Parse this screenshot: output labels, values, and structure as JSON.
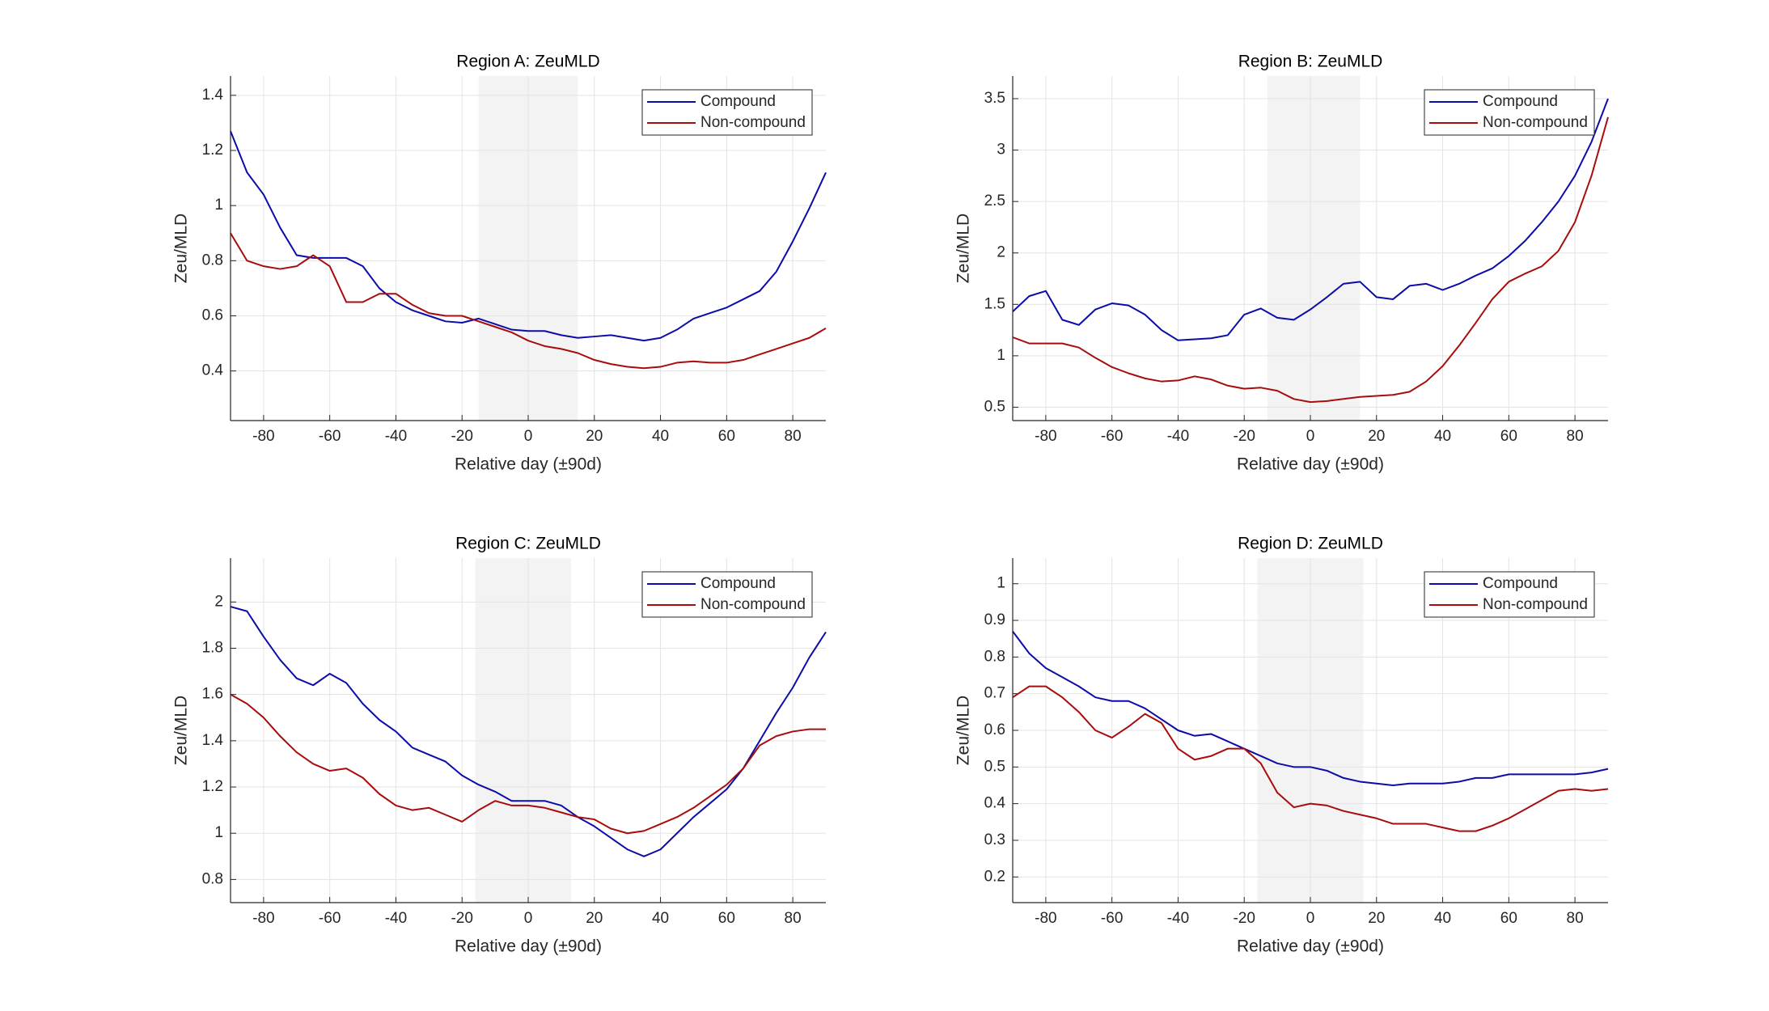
{
  "chart_data": [
    {
      "type": "line",
      "title": "Region A: ZeuMLD",
      "xlabel": "Relative day (±90d)",
      "ylabel": "Zeu/MLD",
      "x": [
        -90,
        -85,
        -80,
        -75,
        -70,
        -65,
        -60,
        -55,
        -50,
        -45,
        -40,
        -35,
        -30,
        -25,
        -20,
        -15,
        -10,
        -5,
        0,
        5,
        10,
        15,
        20,
        25,
        30,
        35,
        40,
        45,
        50,
        55,
        60,
        65,
        70,
        75,
        80,
        85,
        90
      ],
      "series": [
        {
          "name": "Compound",
          "color": "#0c0ca8",
          "values": [
            1.27,
            1.12,
            1.04,
            0.92,
            0.82,
            0.81,
            0.81,
            0.81,
            0.78,
            0.7,
            0.65,
            0.62,
            0.6,
            0.58,
            0.575,
            0.59,
            0.57,
            0.55,
            0.545,
            0.545,
            0.53,
            0.52,
            0.525,
            0.53,
            0.52,
            0.51,
            0.52,
            0.55,
            0.59,
            0.61,
            0.63,
            0.66,
            0.69,
            0.76,
            0.87,
            0.99,
            1.12
          ]
        },
        {
          "name": "Non-compound",
          "color": "#a80c0c",
          "values": [
            0.9,
            0.8,
            0.78,
            0.77,
            0.78,
            0.82,
            0.78,
            0.65,
            0.65,
            0.68,
            0.68,
            0.64,
            0.61,
            0.6,
            0.6,
            0.58,
            0.56,
            0.54,
            0.51,
            0.49,
            0.48,
            0.465,
            0.44,
            0.425,
            0.415,
            0.41,
            0.415,
            0.43,
            0.435,
            0.43,
            0.43,
            0.44,
            0.46,
            0.48,
            0.5,
            0.52,
            0.555
          ]
        }
      ],
      "xlim": [
        -90,
        90
      ],
      "xticks": [
        -80,
        -60,
        -40,
        -20,
        0,
        20,
        40,
        60,
        80
      ],
      "ylim": [
        0.22,
        1.47
      ],
      "yticks": [
        0.4,
        0.6,
        0.8,
        1,
        1.2,
        1.4
      ],
      "highlight_range": [
        -15,
        15
      ],
      "highlight_color": "#f3f3f3",
      "grid": true,
      "legend": "upper right"
    },
    {
      "type": "line",
      "title": "Region B: ZeuMLD",
      "xlabel": "Relative day (±90d)",
      "ylabel": "Zeu/MLD",
      "x": [
        -90,
        -85,
        -80,
        -75,
        -70,
        -65,
        -60,
        -55,
        -50,
        -45,
        -40,
        -35,
        -30,
        -25,
        -20,
        -15,
        -10,
        -5,
        0,
        5,
        10,
        15,
        20,
        25,
        30,
        35,
        40,
        45,
        50,
        55,
        60,
        65,
        70,
        75,
        80,
        85,
        90
      ],
      "series": [
        {
          "name": "Compound",
          "color": "#0c0ca8",
          "values": [
            1.43,
            1.58,
            1.63,
            1.35,
            1.3,
            1.45,
            1.51,
            1.49,
            1.4,
            1.25,
            1.15,
            1.16,
            1.17,
            1.2,
            1.4,
            1.46,
            1.37,
            1.35,
            1.45,
            1.57,
            1.7,
            1.72,
            1.57,
            1.55,
            1.68,
            1.7,
            1.64,
            1.7,
            1.78,
            1.85,
            1.97,
            2.12,
            2.3,
            2.5,
            2.75,
            3.08,
            3.5
          ]
        },
        {
          "name": "Non-compound",
          "color": "#a80c0c",
          "values": [
            1.18,
            1.12,
            1.12,
            1.12,
            1.08,
            0.98,
            0.89,
            0.83,
            0.78,
            0.75,
            0.76,
            0.8,
            0.77,
            0.71,
            0.68,
            0.69,
            0.66,
            0.58,
            0.55,
            0.56,
            0.58,
            0.6,
            0.61,
            0.62,
            0.65,
            0.75,
            0.9,
            1.1,
            1.32,
            1.55,
            1.72,
            1.8,
            1.87,
            2.02,
            2.3,
            2.75,
            3.32
          ]
        }
      ],
      "xlim": [
        -90,
        90
      ],
      "xticks": [
        -80,
        -60,
        -40,
        -20,
        0,
        20,
        40,
        60,
        80
      ],
      "ylim": [
        0.37,
        3.72
      ],
      "yticks": [
        0.5,
        1,
        1.5,
        2,
        2.5,
        3,
        3.5
      ],
      "highlight_range": [
        -13,
        15
      ],
      "highlight_color": "#f3f3f3",
      "grid": true,
      "legend": "upper right"
    },
    {
      "type": "line",
      "title": "Region C: ZeuMLD",
      "xlabel": "Relative day (±90d)",
      "ylabel": "Zeu/MLD",
      "x": [
        -90,
        -85,
        -80,
        -75,
        -70,
        -65,
        -60,
        -55,
        -50,
        -45,
        -40,
        -35,
        -30,
        -25,
        -20,
        -15,
        -10,
        -5,
        0,
        5,
        10,
        15,
        20,
        25,
        30,
        35,
        40,
        45,
        50,
        55,
        60,
        65,
        70,
        75,
        80,
        85,
        90
      ],
      "series": [
        {
          "name": "Compound",
          "color": "#0c0ca8",
          "values": [
            1.98,
            1.96,
            1.85,
            1.75,
            1.67,
            1.64,
            1.69,
            1.65,
            1.56,
            1.49,
            1.44,
            1.37,
            1.34,
            1.31,
            1.25,
            1.21,
            1.18,
            1.14,
            1.14,
            1.14,
            1.12,
            1.07,
            1.03,
            0.98,
            0.93,
            0.9,
            0.93,
            1.0,
            1.07,
            1.13,
            1.19,
            1.28,
            1.4,
            1.52,
            1.63,
            1.76,
            1.87
          ]
        },
        {
          "name": "Non-compound",
          "color": "#a80c0c",
          "values": [
            1.6,
            1.56,
            1.5,
            1.42,
            1.35,
            1.3,
            1.27,
            1.28,
            1.24,
            1.17,
            1.12,
            1.1,
            1.11,
            1.08,
            1.05,
            1.1,
            1.14,
            1.12,
            1.12,
            1.11,
            1.09,
            1.07,
            1.06,
            1.02,
            1.0,
            1.01,
            1.04,
            1.07,
            1.11,
            1.16,
            1.21,
            1.28,
            1.38,
            1.42,
            1.44,
            1.45,
            1.45
          ]
        }
      ],
      "xlim": [
        -90,
        90
      ],
      "xticks": [
        -80,
        -60,
        -40,
        -20,
        0,
        20,
        40,
        60,
        80
      ],
      "ylim": [
        0.7,
        2.19
      ],
      "yticks": [
        0.8,
        1,
        1.2,
        1.4,
        1.6,
        1.8,
        2
      ],
      "highlight_range": [
        -16,
        13
      ],
      "highlight_color": "#f3f3f3",
      "grid": true,
      "legend": "upper right"
    },
    {
      "type": "line",
      "title": "Region D: ZeuMLD",
      "xlabel": "Relative day (±90d)",
      "ylabel": "Zeu/MLD",
      "x": [
        -90,
        -85,
        -80,
        -75,
        -70,
        -65,
        -60,
        -55,
        -50,
        -45,
        -40,
        -35,
        -30,
        -25,
        -20,
        -15,
        -10,
        -5,
        0,
        5,
        10,
        15,
        20,
        25,
        30,
        35,
        40,
        45,
        50,
        55,
        60,
        65,
        70,
        75,
        80,
        85,
        90
      ],
      "series": [
        {
          "name": "Compound",
          "color": "#0c0ca8",
          "values": [
            0.87,
            0.81,
            0.77,
            0.745,
            0.72,
            0.69,
            0.68,
            0.68,
            0.66,
            0.63,
            0.6,
            0.585,
            0.59,
            0.57,
            0.55,
            0.53,
            0.51,
            0.5,
            0.5,
            0.49,
            0.47,
            0.46,
            0.455,
            0.45,
            0.455,
            0.455,
            0.455,
            0.46,
            0.47,
            0.47,
            0.48,
            0.48,
            0.48,
            0.48,
            0.48,
            0.485,
            0.495
          ]
        },
        {
          "name": "Non-compound",
          "color": "#a80c0c",
          "values": [
            0.69,
            0.72,
            0.72,
            0.69,
            0.65,
            0.6,
            0.58,
            0.61,
            0.645,
            0.62,
            0.55,
            0.52,
            0.53,
            0.55,
            0.55,
            0.51,
            0.43,
            0.39,
            0.4,
            0.395,
            0.38,
            0.37,
            0.36,
            0.345,
            0.345,
            0.345,
            0.335,
            0.325,
            0.325,
            0.34,
            0.36,
            0.385,
            0.41,
            0.435,
            0.44,
            0.435,
            0.44
          ]
        }
      ],
      "xlim": [
        -90,
        90
      ],
      "xticks": [
        -80,
        -60,
        -40,
        -20,
        0,
        20,
        40,
        60,
        80
      ],
      "ylim": [
        0.13,
        1.07
      ],
      "yticks": [
        0.2,
        0.3,
        0.4,
        0.5,
        0.6,
        0.7,
        0.8,
        0.9,
        1
      ],
      "highlight_range": [
        -16,
        16
      ],
      "highlight_color": "#f3f3f3",
      "grid": true,
      "legend": "upper right"
    }
  ]
}
